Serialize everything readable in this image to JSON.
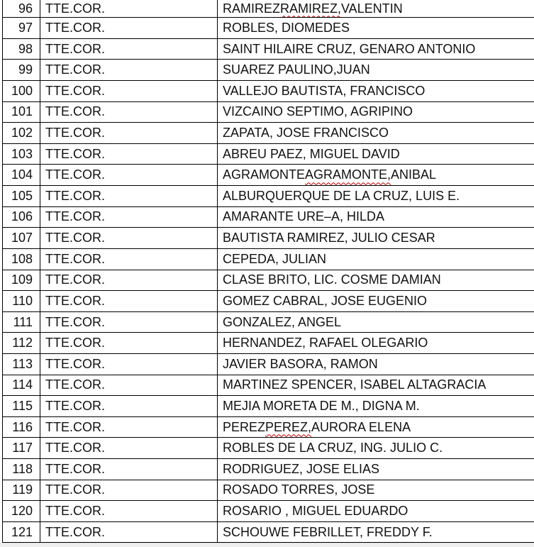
{
  "table": {
    "columns": [
      "row-number",
      "rank",
      "name"
    ],
    "rows": [
      {
        "num": "96",
        "rank": "TTE.COR.",
        "pre": "RAMIREZ ",
        "sq": "RAMIREZ,",
        "post": " VALENTIN"
      },
      {
        "num": "97",
        "rank": "TTE.COR.",
        "pre": "ROBLES, DIOMEDES",
        "sq": "",
        "post": ""
      },
      {
        "num": "98",
        "rank": "TTE.COR.",
        "pre": "SAINT HILAIRE CRUZ, GENARO ANTONIO",
        "sq": "",
        "post": ""
      },
      {
        "num": "99",
        "rank": "TTE.COR.",
        "pre": "SUAREZ PAULINO,JUAN",
        "sq": "",
        "post": ""
      },
      {
        "num": "100",
        "rank": "TTE.COR.",
        "pre": "VALLEJO BAUTISTA, FRANCISCO",
        "sq": "",
        "post": ""
      },
      {
        "num": "101",
        "rank": "TTE.COR.",
        "pre": "VIZCAINO SEPTIMO, AGRIPINO",
        "sq": "",
        "post": ""
      },
      {
        "num": "102",
        "rank": "TTE.COR.",
        "pre": "ZAPATA, JOSE FRANCISCO",
        "sq": "",
        "post": ""
      },
      {
        "num": "103",
        "rank": "TTE.COR.",
        "pre": "ABREU PAEZ, MIGUEL DAVID",
        "sq": "",
        "post": ""
      },
      {
        "num": "104",
        "rank": "TTE.COR.",
        "pre": "AGRAMONTE ",
        "sq": "AGRAMONTE,",
        "post": " ANIBAL"
      },
      {
        "num": "105",
        "rank": "TTE.COR.",
        "pre": "ALBURQUERQUE DE LA CRUZ, LUIS E.",
        "sq": "",
        "post": ""
      },
      {
        "num": "106",
        "rank": "TTE.COR.",
        "pre": "AMARANTE URE–A, HILDA",
        "sq": "",
        "post": ""
      },
      {
        "num": "107",
        "rank": "TTE.COR.",
        "pre": "BAUTISTA RAMIREZ, JULIO CESAR",
        "sq": "",
        "post": ""
      },
      {
        "num": "108",
        "rank": "TTE.COR.",
        "pre": "CEPEDA, JULIAN",
        "sq": "",
        "post": ""
      },
      {
        "num": "109",
        "rank": "TTE.COR.",
        "pre": "CLASE BRITO, LIC. COSME DAMIAN",
        "sq": "",
        "post": ""
      },
      {
        "num": "110",
        "rank": "TTE.COR.",
        "pre": "GOMEZ CABRAL, JOSE EUGENIO",
        "sq": "",
        "post": ""
      },
      {
        "num": "111",
        "rank": "TTE.COR.",
        "pre": "GONZALEZ, ANGEL",
        "sq": "",
        "post": ""
      },
      {
        "num": "112",
        "rank": "TTE.COR.",
        "pre": "HERNANDEZ, RAFAEL OLEGARIO",
        "sq": "",
        "post": ""
      },
      {
        "num": "113",
        "rank": "TTE.COR.",
        "pre": "JAVIER BASORA, RAMON",
        "sq": "",
        "post": ""
      },
      {
        "num": "114",
        "rank": "TTE.COR.",
        "pre": "MARTINEZ SPENCER, ISABEL ALTAGRACIA",
        "sq": "",
        "post": ""
      },
      {
        "num": "115",
        "rank": "TTE.COR.",
        "pre": "MEJIA MORETA DE M., DIGNA M.",
        "sq": "",
        "post": ""
      },
      {
        "num": "116",
        "rank": "TTE.COR.",
        "pre": "PEREZ ",
        "sq": "PEREZ,",
        "post": " AURORA ELENA"
      },
      {
        "num": "117",
        "rank": "TTE.COR.",
        "pre": "ROBLES DE LA CRUZ, ING. JULIO C.",
        "sq": "",
        "post": ""
      },
      {
        "num": "118",
        "rank": "TTE.COR.",
        "pre": "RODRIGUEZ, JOSE ELIAS",
        "sq": "",
        "post": ""
      },
      {
        "num": "119",
        "rank": "TTE.COR.",
        "pre": "ROSADO TORRES, JOSE",
        "sq": "",
        "post": ""
      },
      {
        "num": "120",
        "rank": "TTE.COR.",
        "pre": "ROSARIO , MIGUEL EDUARDO",
        "sq": "",
        "post": ""
      },
      {
        "num": "121",
        "rank": "TTE.COR.",
        "pre": "SCHOUWE FEBRILLET, FREDDY F.",
        "sq": "",
        "post": ""
      }
    ]
  },
  "colors": {
    "border": "#000000",
    "spellcheck_squiggle": "#c00000",
    "page_bottom_strip": "#f0eff0",
    "background": "#ffffff"
  }
}
